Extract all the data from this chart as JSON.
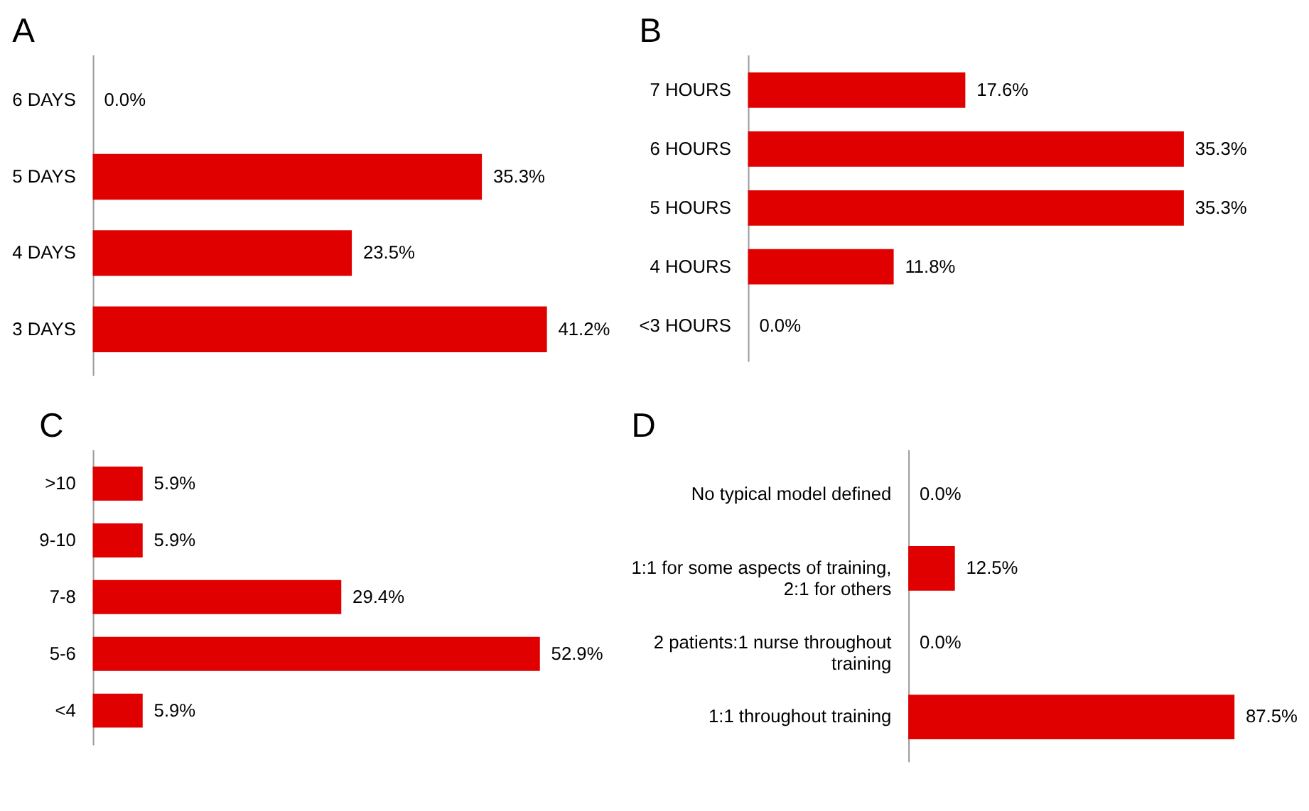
{
  "chart_data": [
    {
      "type": "bar",
      "title": "A",
      "orientation": "horizontal",
      "categories": [
        "6 DAYS",
        "5 DAYS",
        "4 DAYS",
        "3 DAYS"
      ],
      "values": [
        0.0,
        35.3,
        23.5,
        41.2
      ],
      "value_labels": [
        "0.0%",
        "35.3%",
        "23.5%",
        "41.2%"
      ],
      "color": "#e00000"
    },
    {
      "type": "bar",
      "title": "B",
      "orientation": "horizontal",
      "categories": [
        "7 HOURS",
        "6 HOURS",
        "5 HOURS",
        "4 HOURS",
        "<3 HOURS"
      ],
      "values": [
        17.6,
        35.3,
        35.3,
        11.8,
        0.0
      ],
      "value_labels": [
        "17.6%",
        "35.3%",
        "35.3%",
        "11.8%",
        "0.0%"
      ],
      "color": "#e00000"
    },
    {
      "type": "bar",
      "title": "C",
      "orientation": "horizontal",
      "categories": [
        ">10",
        "9-10",
        "7-8",
        "5-6",
        "<4"
      ],
      "values": [
        5.9,
        5.9,
        29.4,
        52.9,
        5.9
      ],
      "value_labels": [
        "5.9%",
        "5.9%",
        "29.4%",
        "52.9%",
        "5.9%"
      ],
      "color": "#e00000"
    },
    {
      "type": "bar",
      "title": "D",
      "orientation": "horizontal",
      "categories": [
        "No typical model defined",
        "1:1 for some aspects of training, 2:1 for others",
        "2 patients:1 nurse throughout training",
        "1:1 throughout training"
      ],
      "values": [
        0.0,
        12.5,
        0.0,
        87.5
      ],
      "value_labels": [
        "0.0%",
        "12.5%",
        "0.0%",
        "87.5%"
      ],
      "color": "#e00000"
    }
  ]
}
